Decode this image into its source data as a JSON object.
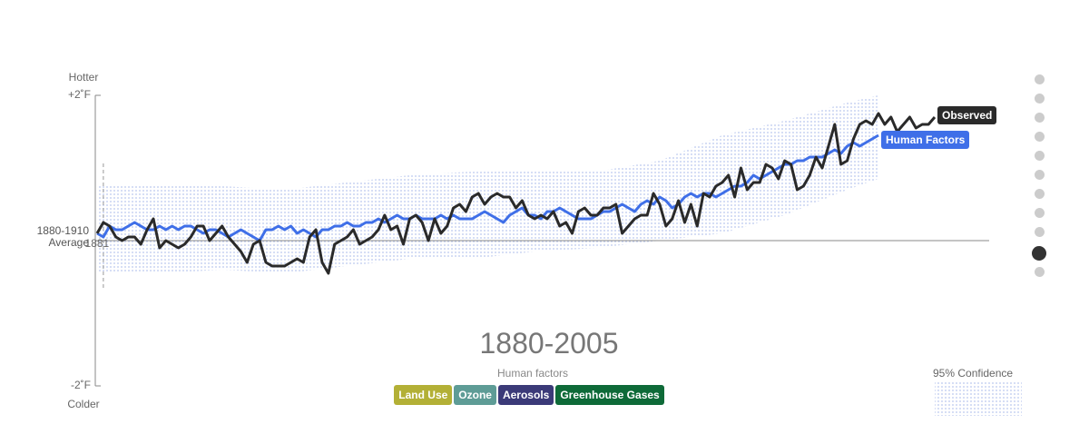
{
  "chart_data": {
    "type": "line",
    "title": "1880-2005",
    "ylabel_top": "Hotter",
    "ylabel_bottom": "Colder",
    "cursor_year": 1881,
    "xlim": [
      1880,
      2014
    ],
    "ylim": [
      -2,
      2
    ],
    "yticks": [
      {
        "value": 2,
        "label": "+2˚F"
      },
      {
        "value": 0,
        "label": "1880-1910 Average"
      },
      {
        "value": -2,
        "label": "-2˚F"
      }
    ],
    "x": [
      1880,
      1881,
      1882,
      1883,
      1884,
      1885,
      1886,
      1887,
      1888,
      1889,
      1890,
      1891,
      1892,
      1893,
      1894,
      1895,
      1896,
      1897,
      1898,
      1899,
      1900,
      1901,
      1902,
      1903,
      1904,
      1905,
      1906,
      1907,
      1908,
      1909,
      1910,
      1911,
      1912,
      1913,
      1914,
      1915,
      1916,
      1917,
      1918,
      1919,
      1920,
      1921,
      1922,
      1923,
      1924,
      1925,
      1926,
      1927,
      1928,
      1929,
      1930,
      1931,
      1932,
      1933,
      1934,
      1935,
      1936,
      1937,
      1938,
      1939,
      1940,
      1941,
      1942,
      1943,
      1944,
      1945,
      1946,
      1947,
      1948,
      1949,
      1950,
      1951,
      1952,
      1953,
      1954,
      1955,
      1956,
      1957,
      1958,
      1959,
      1960,
      1961,
      1962,
      1963,
      1964,
      1965,
      1966,
      1967,
      1968,
      1969,
      1970,
      1971,
      1972,
      1973,
      1974,
      1975,
      1976,
      1977,
      1978,
      1979,
      1980,
      1981,
      1982,
      1983,
      1984,
      1985,
      1986,
      1987,
      1988,
      1989,
      1990,
      1991,
      1992,
      1993,
      1994,
      1995,
      1996,
      1997,
      1998,
      1999,
      2000,
      2001,
      2002,
      2003,
      2004,
      2005,
      2006,
      2007,
      2008,
      2009,
      2010,
      2011,
      2012,
      2013,
      2014
    ],
    "series": [
      {
        "name": "Observed",
        "color": "#2a2a2a",
        "values": [
          0.1,
          0.25,
          0.2,
          0.05,
          0.0,
          0.05,
          0.05,
          -0.05,
          0.15,
          0.3,
          -0.1,
          0.0,
          -0.05,
          -0.1,
          -0.05,
          0.05,
          0.2,
          0.2,
          0.0,
          0.1,
          0.2,
          0.05,
          -0.05,
          -0.15,
          -0.3,
          -0.05,
          0.0,
          -0.3,
          -0.35,
          -0.35,
          -0.35,
          -0.3,
          -0.25,
          -0.3,
          0.05,
          0.15,
          -0.3,
          -0.45,
          -0.05,
          0.0,
          0.05,
          0.15,
          -0.05,
          0.0,
          0.05,
          0.15,
          0.35,
          0.15,
          0.2,
          -0.05,
          0.3,
          0.35,
          0.25,
          0.0,
          0.3,
          0.1,
          0.2,
          0.45,
          0.5,
          0.4,
          0.6,
          0.65,
          0.5,
          0.6,
          0.65,
          0.6,
          0.6,
          0.45,
          0.55,
          0.35,
          0.3,
          0.35,
          0.3,
          0.4,
          0.2,
          0.25,
          0.1,
          0.4,
          0.45,
          0.35,
          0.35,
          0.45,
          0.45,
          0.5,
          0.1,
          0.2,
          0.3,
          0.35,
          0.35,
          0.65,
          0.5,
          0.2,
          0.3,
          0.55,
          0.25,
          0.5,
          0.2,
          0.65,
          0.6,
          0.75,
          0.8,
          0.9,
          0.6,
          1.0,
          0.7,
          0.8,
          0.8,
          1.05,
          1.0,
          0.85,
          1.1,
          1.05,
          0.7,
          0.75,
          0.9,
          1.15,
          1.0,
          1.3,
          1.6,
          1.05,
          1.1,
          1.4,
          1.6,
          1.65,
          1.6,
          1.75,
          1.6,
          1.7,
          1.5,
          1.6,
          1.7,
          1.55,
          1.6,
          1.6,
          1.7
        ]
      },
      {
        "name": "Human Factors",
        "color": "#3f6fe8",
        "values": [
          0.1,
          0.05,
          0.2,
          0.15,
          0.15,
          0.2,
          0.25,
          0.2,
          0.15,
          0.15,
          0.2,
          0.15,
          0.2,
          0.15,
          0.2,
          0.2,
          0.15,
          0.1,
          0.15,
          0.15,
          0.1,
          0.05,
          0.1,
          0.15,
          0.1,
          0.05,
          0.0,
          0.15,
          0.15,
          0.2,
          0.15,
          0.2,
          0.1,
          0.15,
          0.1,
          0.05,
          0.15,
          0.15,
          0.2,
          0.2,
          0.25,
          0.2,
          0.2,
          0.25,
          0.25,
          0.3,
          0.25,
          0.3,
          0.35,
          0.3,
          0.3,
          0.35,
          0.3,
          0.3,
          0.3,
          0.35,
          0.3,
          0.35,
          0.3,
          0.3,
          0.3,
          0.35,
          0.4,
          0.35,
          0.3,
          0.25,
          0.35,
          0.4,
          0.45,
          0.35,
          0.35,
          0.3,
          0.4,
          0.4,
          0.45,
          0.4,
          0.35,
          0.3,
          0.3,
          0.3,
          0.35,
          0.4,
          0.4,
          0.45,
          0.5,
          0.45,
          0.4,
          0.5,
          0.55,
          0.5,
          0.6,
          0.55,
          0.45,
          0.5,
          0.6,
          0.65,
          0.6,
          0.65,
          0.65,
          0.6,
          0.65,
          0.7,
          0.75,
          0.75,
          0.8,
          0.9,
          0.85,
          0.9,
          0.95,
          1.0,
          1.05,
          1.05,
          1.1,
          1.1,
          1.15,
          1.15,
          1.15,
          1.2,
          1.25,
          1.2,
          1.3,
          1.35,
          1.3,
          1.35,
          1.4,
          1.45,
          null,
          null,
          null,
          null,
          null,
          null,
          null,
          null,
          null
        ]
      }
    ],
    "confidence": {
      "name": "95% Confidence",
      "color": "#b8c6ee",
      "x": [
        1880,
        1890,
        1900,
        1910,
        1920,
        1930,
        1940,
        1950,
        1960,
        1970,
        1980,
        1990,
        2000,
        2005
      ],
      "upper": [
        0.75,
        0.75,
        0.75,
        0.7,
        0.8,
        0.9,
        0.95,
        0.95,
        0.95,
        1.1,
        1.45,
        1.65,
        1.9,
        2.0
      ],
      "lower": [
        -0.45,
        -0.45,
        -0.4,
        -0.45,
        -0.35,
        -0.25,
        -0.25,
        -0.15,
        -0.1,
        0.0,
        0.1,
        0.35,
        0.7,
        0.85
      ]
    }
  },
  "human_factors": {
    "label": "Human factors",
    "buttons": [
      {
        "name": "Land Use",
        "color": "#b3b036"
      },
      {
        "name": "Ozone",
        "color": "#5e9c96"
      },
      {
        "name": "Aerosols",
        "color": "#3b3a78"
      },
      {
        "name": "Greenhouse Gases",
        "color": "#0e6a38"
      }
    ]
  }
}
